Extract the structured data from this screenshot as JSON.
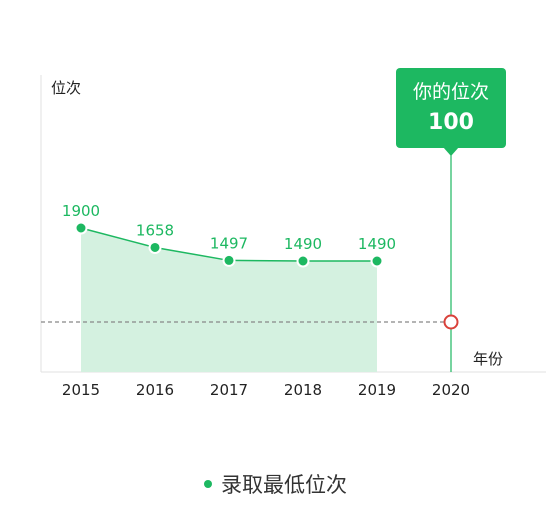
{
  "chart_data": {
    "type": "area",
    "x": [
      "2015",
      "2016",
      "2017",
      "2018",
      "2019",
      "2020"
    ],
    "series": [
      {
        "name": "录取最低位次",
        "x": [
          "2015",
          "2016",
          "2017",
          "2018",
          "2019"
        ],
        "values": [
          1900,
          1658,
          1497,
          1490,
          1490
        ],
        "labels": [
          "1900",
          "1658",
          "1497",
          "1490",
          "1490"
        ]
      }
    ],
    "ylabel": "位次",
    "xlabel": "年份",
    "y_axis_ticks_shown": false,
    "y_direction": "reversed",
    "reference": {
      "x": "2020",
      "value": 100,
      "title": "你的位次",
      "value_label": "100"
    },
    "legend_position": "bottom-center",
    "grid": false
  },
  "colors": {
    "series": "#1db861",
    "area": "#d4f1e0",
    "callout": "#1db861",
    "reference_marker": "#d9413a",
    "dashed_line": "#888888",
    "axis": "#e2e2e2"
  }
}
